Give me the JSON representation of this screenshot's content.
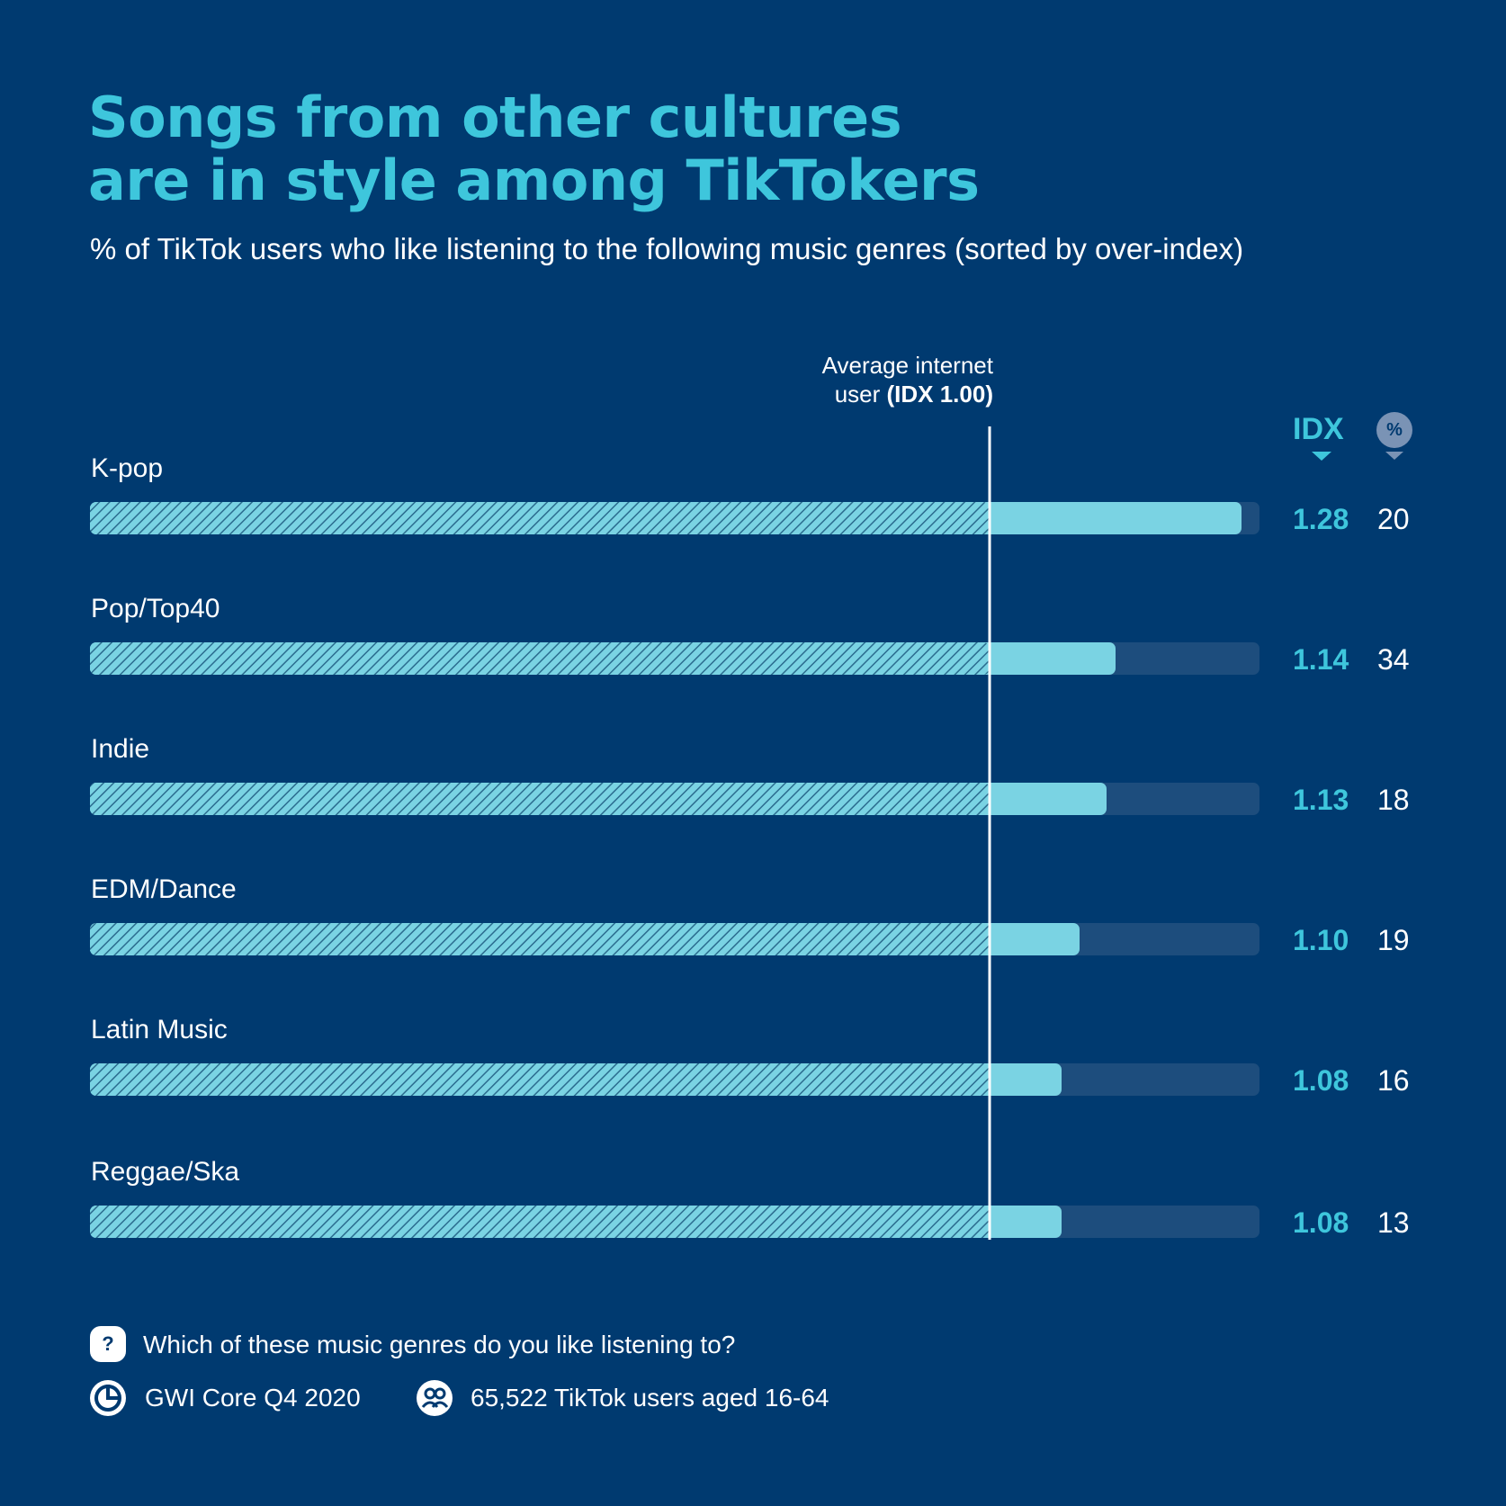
{
  "header": {
    "title_line1": "Songs from other cultures",
    "title_line2": "are in style among TikTokers",
    "subtitle": "% of TikTok users who like listening to the following music genres (sorted by over-index)"
  },
  "reference": {
    "label_line1": "Average internet",
    "label_line2_prefix": "user ",
    "label_line2_bold": "(IDX 1.00)"
  },
  "columns": {
    "idx_header": "IDX",
    "pct_header": "%"
  },
  "chart_data": {
    "type": "bar",
    "orientation": "horizontal",
    "categories": [
      "K-pop",
      "Pop/Top40",
      "Indie",
      "EDM/Dance",
      "Latin Music",
      "Reggae/Ska"
    ],
    "idx_labels": [
      "1.28",
      "1.14",
      "1.13",
      "1.10",
      "1.08",
      "1.08"
    ],
    "idx": [
      1.28,
      1.14,
      1.13,
      1.1,
      1.08,
      1.08
    ],
    "percent": [
      20,
      34,
      18,
      19,
      16,
      13
    ],
    "reference_value": 1.0,
    "xlim": [
      0,
      1.3
    ],
    "colors": {
      "hatch_fill": "#7ad3e3",
      "hatch_line": "#2b6c8f",
      "solid_fill": "#7ad3e3",
      "track": "#1d4d7d",
      "idx_text": "#3ec6dc",
      "reference_line": "#ffffff"
    }
  },
  "footer": {
    "question": "Which of these music genres do you like listening to?",
    "source": "GWI Core Q4 2020",
    "sample": "65,522 TikTok users aged 16-64",
    "question_icon": "question-icon",
    "source_icon": "gwi-logo-icon",
    "sample_icon": "users-icon"
  }
}
